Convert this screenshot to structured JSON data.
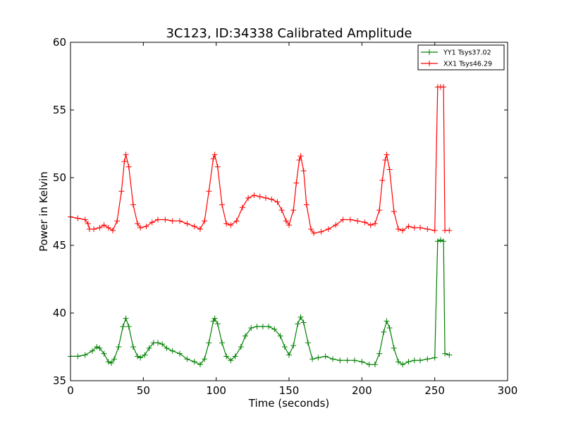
{
  "chart_data": {
    "type": "line",
    "title": "3C123, ID:34338 Calibrated Amplitude",
    "xlabel": "Time (seconds)",
    "ylabel": "Power in Kelvin",
    "xlim": [
      0,
      300
    ],
    "ylim": [
      35,
      60
    ],
    "xticks": [
      "0",
      "50",
      "100",
      "150",
      "200",
      "250",
      "300"
    ],
    "yticks": [
      "35",
      "40",
      "45",
      "50",
      "55",
      "60"
    ],
    "grid": false,
    "legend_position": "top-right",
    "marker": "plus",
    "series": [
      {
        "name": "YY1 Tsys37.02",
        "color": "#008000",
        "points": [
          [
            0,
            36.8
          ],
          [
            5,
            36.8
          ],
          [
            10,
            36.9
          ],
          [
            15,
            37.2
          ],
          [
            18,
            37.5
          ],
          [
            20,
            37.4
          ],
          [
            23,
            37.0
          ],
          [
            26,
            36.4
          ],
          [
            28,
            36.3
          ],
          [
            30,
            36.6
          ],
          [
            33,
            37.5
          ],
          [
            36,
            39.0
          ],
          [
            38,
            39.6
          ],
          [
            40,
            39.0
          ],
          [
            43,
            37.5
          ],
          [
            46,
            36.8
          ],
          [
            48,
            36.7
          ],
          [
            51,
            36.9
          ],
          [
            54,
            37.4
          ],
          [
            57,
            37.8
          ],
          [
            60,
            37.8
          ],
          [
            63,
            37.7
          ],
          [
            66,
            37.4
          ],
          [
            70,
            37.2
          ],
          [
            75,
            37.0
          ],
          [
            80,
            36.6
          ],
          [
            85,
            36.4
          ],
          [
            89,
            36.2
          ],
          [
            92,
            36.6
          ],
          [
            95,
            37.8
          ],
          [
            98,
            39.4
          ],
          [
            99,
            39.6
          ],
          [
            101,
            39.2
          ],
          [
            104,
            37.8
          ],
          [
            107,
            36.8
          ],
          [
            110,
            36.5
          ],
          [
            113,
            36.8
          ],
          [
            117,
            37.5
          ],
          [
            120,
            38.3
          ],
          [
            124,
            38.9
          ],
          [
            128,
            39.0
          ],
          [
            132,
            39.0
          ],
          [
            136,
            39.0
          ],
          [
            140,
            38.8
          ],
          [
            144,
            38.3
          ],
          [
            147,
            37.5
          ],
          [
            150,
            36.9
          ],
          [
            153,
            37.6
          ],
          [
            156,
            39.2
          ],
          [
            158,
            39.7
          ],
          [
            160,
            39.3
          ],
          [
            163,
            37.8
          ],
          [
            166,
            36.6
          ],
          [
            170,
            36.7
          ],
          [
            175,
            36.8
          ],
          [
            180,
            36.6
          ],
          [
            185,
            36.5
          ],
          [
            190,
            36.5
          ],
          [
            195,
            36.5
          ],
          [
            200,
            36.4
          ],
          [
            205,
            36.2
          ],
          [
            209,
            36.2
          ],
          [
            212,
            37.0
          ],
          [
            215,
            38.6
          ],
          [
            217,
            39.4
          ],
          [
            219,
            38.9
          ],
          [
            222,
            37.4
          ],
          [
            225,
            36.4
          ],
          [
            228,
            36.2
          ],
          [
            232,
            36.4
          ],
          [
            236,
            36.5
          ],
          [
            240,
            36.5
          ],
          [
            245,
            36.6
          ],
          [
            250,
            36.7
          ],
          [
            252,
            45.3
          ],
          [
            254,
            45.4
          ],
          [
            256,
            45.3
          ],
          [
            257,
            37.0
          ],
          [
            260,
            36.9
          ]
        ]
      },
      {
        "name": "XX1 Tsys46.29",
        "color": "#ff0000",
        "points": [
          [
            0,
            47.1
          ],
          [
            5,
            47.0
          ],
          [
            10,
            46.9
          ],
          [
            12,
            46.6
          ],
          [
            13,
            46.2
          ],
          [
            16,
            46.2
          ],
          [
            20,
            46.3
          ],
          [
            23,
            46.5
          ],
          [
            26,
            46.3
          ],
          [
            29,
            46.1
          ],
          [
            32,
            46.8
          ],
          [
            35,
            49.0
          ],
          [
            37,
            51.2
          ],
          [
            38,
            51.7
          ],
          [
            40,
            50.8
          ],
          [
            43,
            48.0
          ],
          [
            46,
            46.6
          ],
          [
            48,
            46.3
          ],
          [
            52,
            46.4
          ],
          [
            56,
            46.7
          ],
          [
            60,
            46.9
          ],
          [
            65,
            46.9
          ],
          [
            70,
            46.8
          ],
          [
            75,
            46.8
          ],
          [
            80,
            46.6
          ],
          [
            85,
            46.4
          ],
          [
            89,
            46.2
          ],
          [
            92,
            46.8
          ],
          [
            95,
            49.0
          ],
          [
            98,
            51.4
          ],
          [
            99,
            51.7
          ],
          [
            101,
            50.8
          ],
          [
            104,
            48.0
          ],
          [
            107,
            46.6
          ],
          [
            110,
            46.5
          ],
          [
            114,
            46.8
          ],
          [
            118,
            47.8
          ],
          [
            122,
            48.5
          ],
          [
            126,
            48.7
          ],
          [
            130,
            48.6
          ],
          [
            134,
            48.5
          ],
          [
            138,
            48.4
          ],
          [
            142,
            48.2
          ],
          [
            145,
            47.6
          ],
          [
            148,
            46.8
          ],
          [
            150,
            46.5
          ],
          [
            153,
            47.6
          ],
          [
            155,
            49.6
          ],
          [
            157,
            51.3
          ],
          [
            158,
            51.6
          ],
          [
            160,
            50.5
          ],
          [
            162,
            48.0
          ],
          [
            165,
            46.2
          ],
          [
            167,
            45.9
          ],
          [
            172,
            46.0
          ],
          [
            177,
            46.2
          ],
          [
            182,
            46.5
          ],
          [
            187,
            46.9
          ],
          [
            192,
            46.9
          ],
          [
            197,
            46.8
          ],
          [
            202,
            46.7
          ],
          [
            206,
            46.5
          ],
          [
            209,
            46.6
          ],
          [
            212,
            47.6
          ],
          [
            214,
            49.8
          ],
          [
            216,
            51.3
          ],
          [
            217,
            51.7
          ],
          [
            219,
            50.6
          ],
          [
            222,
            47.5
          ],
          [
            225,
            46.2
          ],
          [
            228,
            46.1
          ],
          [
            232,
            46.4
          ],
          [
            236,
            46.3
          ],
          [
            240,
            46.3
          ],
          [
            245,
            46.2
          ],
          [
            250,
            46.1
          ],
          [
            252,
            56.7
          ],
          [
            254,
            56.7
          ],
          [
            256,
            56.7
          ],
          [
            257,
            46.1
          ],
          [
            260,
            46.1
          ]
        ]
      }
    ]
  }
}
